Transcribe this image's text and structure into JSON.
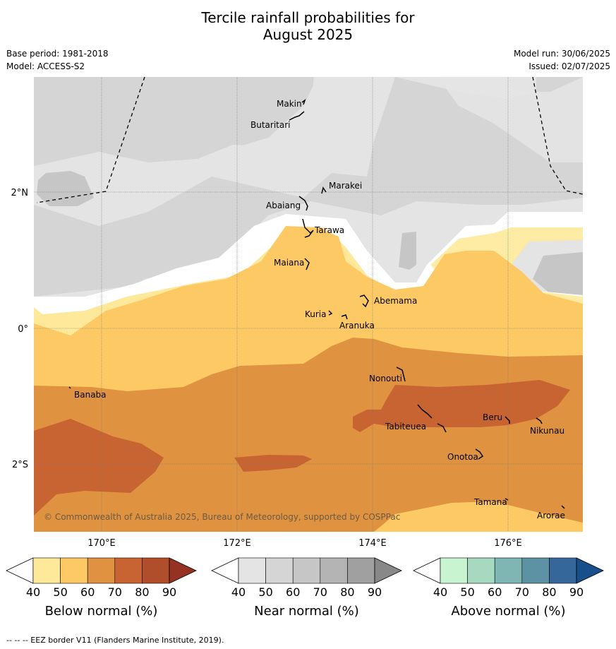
{
  "title_line1": "Tercile rainfall probabilities for",
  "title_line2": "August 2025",
  "base_period": "Base period: 1981-2018",
  "model": "Model: ACCESS-S2",
  "model_run": "Model run: 30/06/2025",
  "issued": "Issued: 02/07/2025",
  "copyright": "© Commonwealth of Australia 2025, Bureau of Meteorology, supported by COSPPac",
  "footer": "-- -- -- EEZ border V11 (Flanders Marine Institute, 2019).",
  "lon_ticks": [
    "170°E",
    "172°E",
    "174°E",
    "176°E"
  ],
  "lat_ticks": [
    "2°N",
    "0°",
    "2°S"
  ],
  "places": [
    "Makin",
    "Butaritari",
    "Marakei",
    "Abaiang",
    "Tarawa",
    "Maiana",
    "Abemama",
    "Kuria",
    "Aranuka",
    "Nonouti",
    "Banaba",
    "Tabiteuea",
    "Beru",
    "Nikunau",
    "Onotoa",
    "Tamana",
    "Arorae"
  ],
  "colorbars": [
    {
      "title": "Below normal (%)",
      "ticks": [
        "40",
        "50",
        "60",
        "70",
        "80",
        "90"
      ],
      "colors": [
        "#ffffff",
        "#fee99a",
        "#fdc964",
        "#df9340",
        "#c86432",
        "#b04d2a",
        "#963222"
      ]
    },
    {
      "title": "Near normal (%)",
      "ticks": [
        "40",
        "50",
        "60",
        "70",
        "80",
        "90"
      ],
      "colors": [
        "#ffffff",
        "#e4e4e4",
        "#d5d5d5",
        "#c6c6c6",
        "#b4b4b4",
        "#a0a0a0",
        "#888888"
      ]
    },
    {
      "title": "Above normal (%)",
      "ticks": [
        "40",
        "50",
        "60",
        "70",
        "80",
        "90"
      ],
      "colors": [
        "#ffffff",
        "#c9f4d0",
        "#a6d9c0",
        "#7fb5b2",
        "#5d92a4",
        "#35679a",
        "#184e8a"
      ]
    }
  ],
  "colors": {
    "near40": "#e4e4e4",
    "near50": "#d5d5d5",
    "below40": "#fee99a",
    "below50": "#fdc964",
    "below60": "#df9340",
    "below70": "#c86432",
    "grid": "#777777"
  }
}
